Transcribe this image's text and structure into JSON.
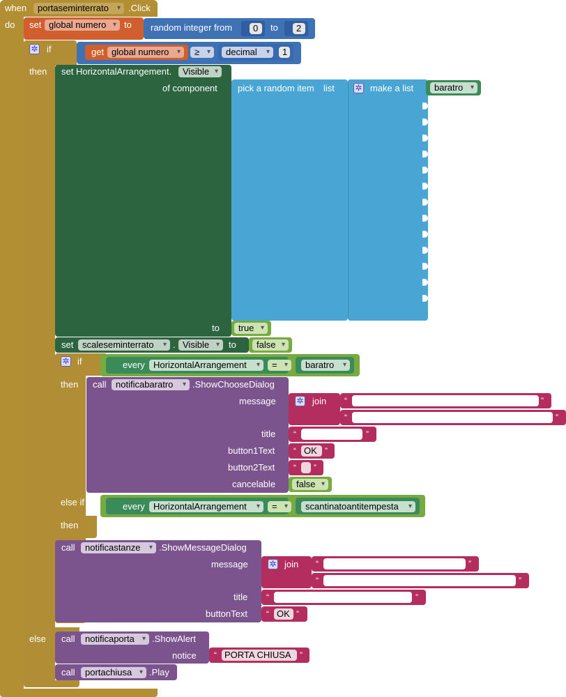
{
  "event": {
    "when": "when",
    "component": "portaseminterrato",
    "event_name": ".Click",
    "do": "do"
  },
  "set_numero": {
    "set": "set",
    "var": "global numero",
    "to": "to"
  },
  "random": {
    "label": "random integer from",
    "from": "0",
    "to_label": "to",
    "to": "2"
  },
  "if1": {
    "if": "if",
    "then": "then",
    "else": "else"
  },
  "get_numero": {
    "get": "get",
    "var": "global numero",
    "op": "≥",
    "decimal": "decimal",
    "value": "1"
  },
  "set_visible": {
    "label": "set HorizontalArrangement.",
    "prop": "Visible",
    "of_component": "of component",
    "to": "to",
    "true": "true"
  },
  "pick": {
    "label": "pick a random item",
    "list": "list",
    "make_list": "make a list",
    "item": "baratro"
  },
  "set_scale": {
    "set": "set",
    "component": "scaleseminterrato",
    "dot": ".",
    "prop": "Visible",
    "to": "to",
    "value": "false"
  },
  "if2": {
    "if": "if",
    "then": "then",
    "else_if": "else if",
    "then2": "then"
  },
  "cond1": {
    "every": "every",
    "type": "HorizontalArrangement",
    "eq": "=",
    "value": "baratro"
  },
  "call_choose": {
    "call": "call",
    "component": "notificabaratro",
    "method": ".ShowChooseDialog",
    "message": "message",
    "join": "join",
    "title": "title",
    "button1": "button1Text",
    "button1_val": "OK",
    "button2": "button2Text",
    "button2_val": "",
    "cancelable": "cancelable",
    "cancelable_val": "false"
  },
  "cond2": {
    "every": "every",
    "type": "HorizontalArrangement",
    "eq": "=",
    "value": "scantinatoantitempesta"
  },
  "call_message": {
    "call": "call",
    "component": "notificastanze",
    "method": ".ShowMessageDialog",
    "message": "message",
    "join": "join",
    "title": "title",
    "button": "buttonText",
    "button_val": "OK"
  },
  "call_alert": {
    "call": "call",
    "component": "notificaporta",
    "method": ".ShowAlert",
    "notice": "notice",
    "notice_val": "PORTA CHIUSA"
  },
  "call_play": {
    "call": "call",
    "component": "portachiusa",
    "method": ".Play"
  },
  "quote_open": "“",
  "quote_close": "”",
  "icons": [
    "gear-icon",
    "dropdown-arrow-icon"
  ],
  "colors": {
    "event": "#b18f32",
    "variable": "#d05f2d",
    "math": "#3f71b5",
    "component": "#2c6440",
    "list": "#49a6d4",
    "logic": "#77ab41",
    "procedure": "#7c548d",
    "text": "#b32d5e"
  }
}
